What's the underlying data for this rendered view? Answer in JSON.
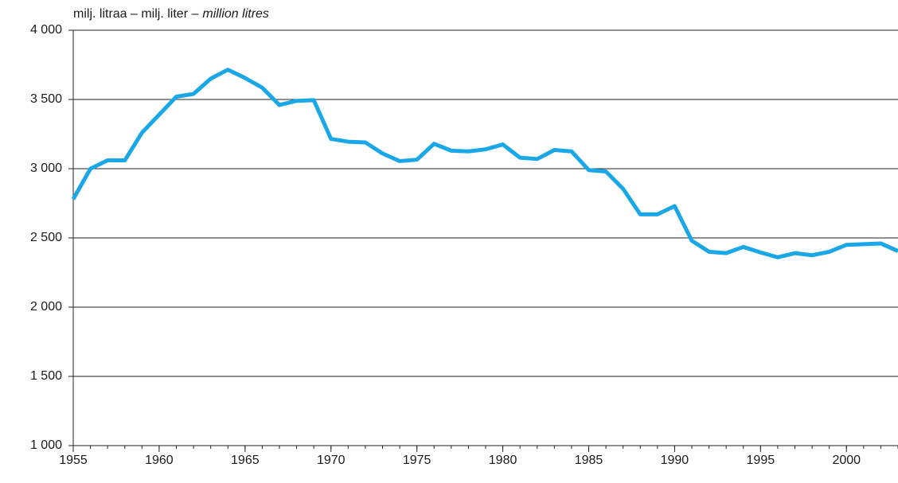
{
  "chart_data": {
    "type": "line",
    "y_label": [
      "milj. litraa – milj. liter –",
      "million litres"
    ],
    "x": [
      1955,
      1956,
      1957,
      1958,
      1959,
      1960,
      1961,
      1962,
      1963,
      1964,
      1965,
      1966,
      1967,
      1968,
      1969,
      1970,
      1971,
      1972,
      1973,
      1974,
      1975,
      1976,
      1977,
      1978,
      1979,
      1980,
      1981,
      1982,
      1983,
      1984,
      1985,
      1986,
      1987,
      1988,
      1989,
      1990,
      1991,
      1992,
      1993,
      1994,
      1995,
      1996,
      1997,
      1998,
      1999,
      2000,
      2001,
      2002,
      2003
    ],
    "series": [
      {
        "color": "#1aa7e8",
        "values": [
          2780,
          3000,
          3060,
          3060,
          3260,
          3390,
          3520,
          3540,
          3650,
          3715,
          3655,
          3585,
          3460,
          3490,
          3495,
          3215,
          3195,
          3190,
          3110,
          3055,
          3065,
          3180,
          3130,
          3125,
          3140,
          3175,
          3080,
          3070,
          3135,
          3125,
          2990,
          2980,
          2855,
          2670,
          2670,
          2730,
          2480,
          2400,
          2390,
          2435,
          2395,
          2360,
          2390,
          2375,
          2400,
          2450,
          2455,
          2460,
          2405
        ]
      }
    ],
    "xlim": [
      1955,
      2003
    ],
    "xticks": [
      1955,
      1960,
      1965,
      1970,
      1975,
      1980,
      1985,
      1990,
      1995,
      2000
    ],
    "ylim": [
      1000,
      4000
    ],
    "yticks": [
      {
        "value": 1000,
        "label": "1 000"
      },
      {
        "value": 1500,
        "label": "1 500"
      },
      {
        "value": 2000,
        "label": "2 000"
      },
      {
        "value": 2500,
        "label": "2 500"
      },
      {
        "value": 3000,
        "label": "3 000"
      },
      {
        "value": 3500,
        "label": "3 500"
      },
      {
        "value": 4000,
        "label": "4 000"
      }
    ],
    "grid": true
  }
}
